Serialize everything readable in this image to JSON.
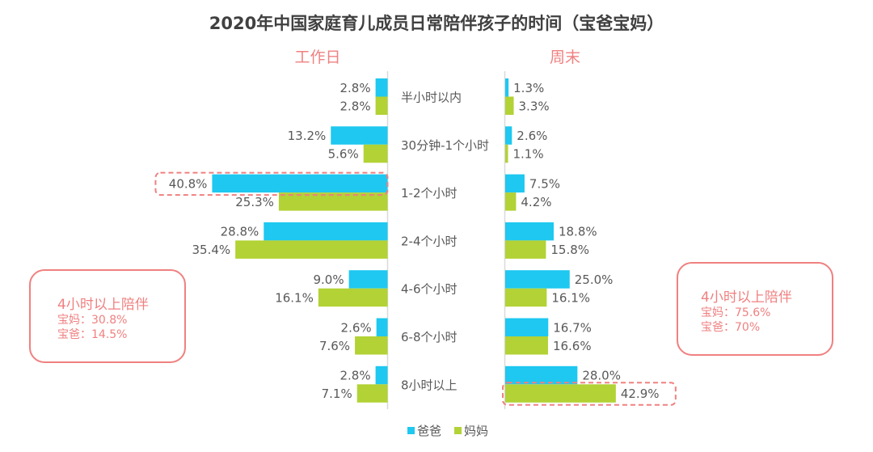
{
  "chart_data": {
    "type": "bar",
    "orientation": "horizontal-butterfly",
    "title": "2020年中国家庭育儿成员日常陪伴孩子的时间（宝爸宝妈）",
    "categories": [
      "半小时以内",
      "30分钟-1个小时",
      "1-2个小时",
      "2-4个小时",
      "4-6个小时",
      "6-8个小时",
      "8小时以上"
    ],
    "panels": [
      {
        "title": "工作日",
        "side": "left",
        "series": [
          {
            "name": "爸爸",
            "values": [
              2.8,
              13.2,
              40.8,
              28.8,
              9.0,
              2.6,
              2.8
            ],
            "labels": [
              "2.8%",
              "13.2%",
              "40.8%",
              "28.8%",
              "9.0%",
              "2.6%",
              "2.8%"
            ]
          },
          {
            "name": "妈妈",
            "values": [
              2.8,
              5.6,
              25.3,
              35.4,
              16.1,
              7.6,
              7.1
            ],
            "labels": [
              "2.8%",
              "5.6%",
              "25.3%",
              "35.4%",
              "16.1%",
              "7.6%",
              "7.1%"
            ]
          }
        ],
        "highlight": {
          "series": "爸爸",
          "category": "1-2个小时"
        },
        "note": {
          "head": "4小时以上陪伴",
          "lines": [
            "宝妈：30.8%",
            "宝爸：14.5%"
          ]
        }
      },
      {
        "title": "周末",
        "side": "right",
        "series": [
          {
            "name": "爸爸",
            "values": [
              1.3,
              2.6,
              7.5,
              18.8,
              25.0,
              16.7,
              28.0
            ],
            "labels": [
              "1.3%",
              "2.6%",
              "7.5%",
              "18.8%",
              "25.0%",
              "16.7%",
              "28.0%"
            ]
          },
          {
            "name": "妈妈",
            "values": [
              3.3,
              1.1,
              4.2,
              15.8,
              16.1,
              16.6,
              42.9
            ],
            "labels": [
              "3.3%",
              "1.1%",
              "4.2%",
              "15.8%",
              "16.1%",
              "16.6%",
              "42.9%"
            ]
          }
        ],
        "highlight": {
          "series": "妈妈",
          "category": "8小时以上"
        },
        "note": {
          "head": "4小时以上陪伴",
          "lines": [
            "宝妈：75.6%",
            "宝爸：70%"
          ]
        }
      }
    ],
    "legend": {
      "position": "bottom",
      "entries": [
        "爸爸",
        "妈妈"
      ]
    },
    "colors": {
      "爸爸": "#1ec8f0",
      "妈妈": "#b2d235",
      "accent": "#f08080",
      "axis": "#d9d9d9"
    },
    "grid": false
  }
}
